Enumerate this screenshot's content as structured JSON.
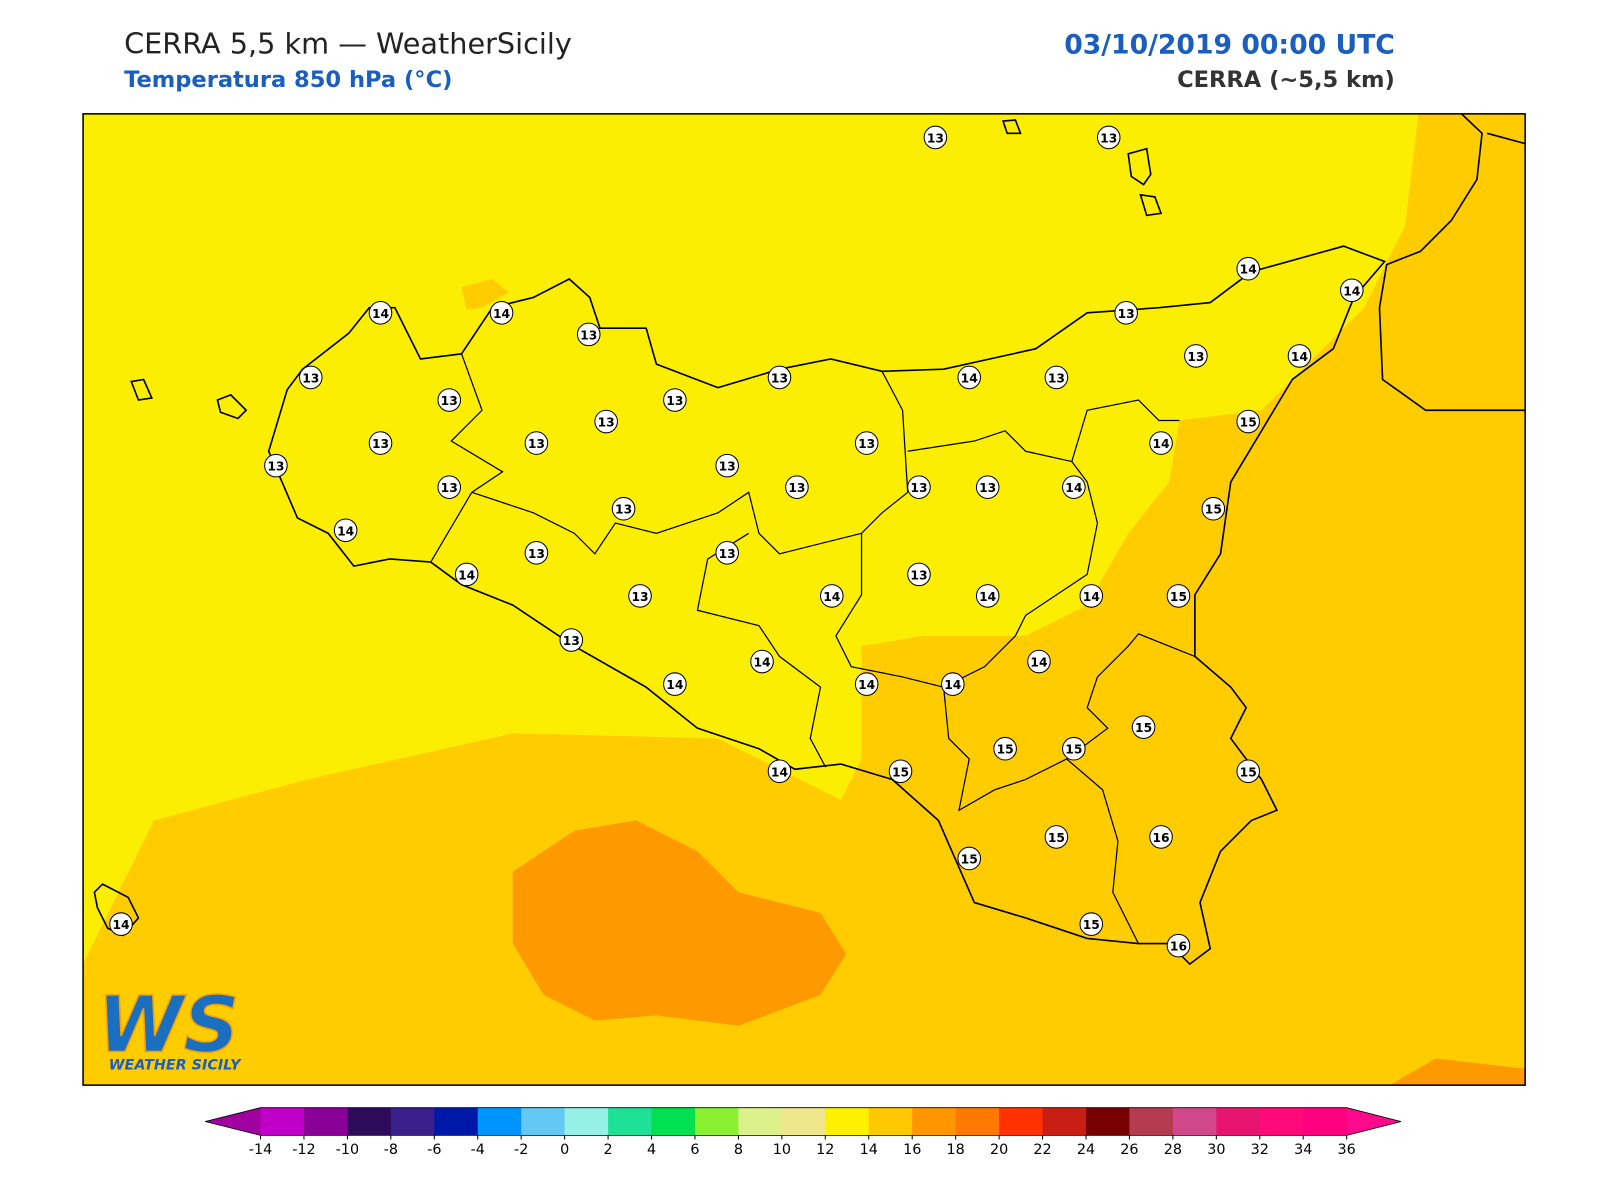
{
  "header": {
    "title": "CERRA 5,5 km — WeatherSicily",
    "subtitle": "Temperatura 850 hPa (°C)",
    "date": "03/10/2019 00:00 UTC",
    "model": "CERRA (~5,5 km)"
  },
  "stations": [
    13,
    13,
    14,
    14,
    14,
    14,
    13,
    13,
    13,
    13,
    13,
    13,
    14,
    13,
    13,
    14,
    13,
    13,
    13,
    13,
    15,
    14,
    13,
    13,
    13,
    13,
    13,
    13,
    14,
    13,
    15,
    14,
    13,
    13,
    13,
    14,
    13,
    14,
    14,
    14,
    15,
    13,
    14,
    14,
    14,
    14,
    14,
    15,
    15,
    15,
    14,
    15,
    15,
    15,
    16,
    15,
    15,
    16,
    14
  ],
  "colorbar": {
    "ticks": [
      -14,
      -12,
      -10,
      -8,
      -6,
      -4,
      -2,
      0,
      2,
      4,
      6,
      8,
      10,
      12,
      14,
      16,
      18,
      20,
      22,
      24,
      26,
      28,
      30,
      32,
      34,
      36
    ],
    "colors": [
      "#c000c8",
      "#8a0096",
      "#2e0a5a",
      "#3a1e8a",
      "#0018a8",
      "#0094ff",
      "#64c8f4",
      "#96f0e6",
      "#1ee096",
      "#00e050",
      "#8cf032",
      "#dcf08c",
      "#f0e68c",
      "#fff000",
      "#ffc800",
      "#ff9600",
      "#ff7800",
      "#ff3200",
      "#c81e14",
      "#780000",
      "#b43c50",
      "#d2468c",
      "#e6146e",
      "#ff0a78",
      "#ff0080"
    ],
    "under": "#a000a0",
    "over": "#ff0a8c"
  },
  "logo": {
    "letters": "WS",
    "text": "WEATHER SICILY"
  }
}
